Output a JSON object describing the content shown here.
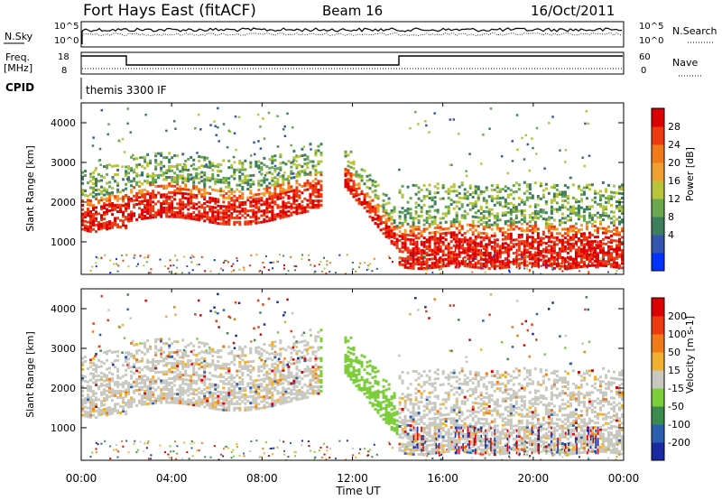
{
  "header": {
    "station": "Fort Hays East (fitACF)",
    "beam": "Beam 16",
    "date": "16/Oct/2011"
  },
  "top_panels": {
    "nsky_label": "N.Sky",
    "nsearch_label": "N.Search",
    "nsky_ticks": [
      "10^5",
      "10^0"
    ],
    "nsearch_ticks": [
      "10^5",
      "10^0"
    ],
    "freq_label": "Freq.",
    "freq_unit": "[MHz]",
    "freq_ticks": [
      "18",
      "8"
    ],
    "nave_label": "Nave",
    "nave_ticks": [
      "60",
      "0"
    ],
    "cpid_label": "CPID",
    "cpid_value": "themis 3300 IF"
  },
  "chart_data": [
    {
      "type": "heatmap",
      "panel": "power",
      "ylabel": "Slant Range [km]",
      "xlabel": "",
      "yticks": [
        "1000",
        "2000",
        "3000",
        "4000"
      ],
      "ylim": [
        180,
        4500
      ],
      "xlim": [
        "00:00",
        "24:00"
      ],
      "colorbar": {
        "label": "Power [dB]",
        "ticks": [
          "28",
          "24",
          "20",
          "16",
          "12",
          "8",
          "4"
        ],
        "colors": [
          "#0033ff",
          "#3355b0",
          "#3d7f5c",
          "#6aa84f",
          "#b8c43a",
          "#f0a030",
          "#f07a18",
          "#ee3a10",
          "#dd0000"
        ]
      },
      "echo_bands": [
        {
          "from_hour": 0.0,
          "to_hour": 2.0,
          "range_km": [
            1500,
            2500
          ],
          "power_db": 26
        },
        {
          "from_hour": 2.0,
          "to_hour": 10.0,
          "range_km": [
            1300,
            2800
          ],
          "power_db": 24
        },
        {
          "from_hour": 10.5,
          "to_hour": 14.0,
          "range_km": [
            900,
            3200
          ],
          "power_db": 22
        },
        {
          "from_hour": 14.0,
          "to_hour": 24.0,
          "range_km": [
            1000,
            2500
          ],
          "power_db": 22
        }
      ]
    },
    {
      "type": "heatmap",
      "panel": "velocity",
      "ylabel": "Slant Range [km]",
      "xlabel": "Time UT",
      "yticks": [
        "1000",
        "2000",
        "3000",
        "4000"
      ],
      "ylim": [
        180,
        4500
      ],
      "xticks": [
        "00:00",
        "04:00",
        "08:00",
        "12:00",
        "16:00",
        "20:00",
        "00:00"
      ],
      "colorbar": {
        "label": "Velocity [m s-1]",
        "ticks": [
          "200",
          "100",
          "50",
          "15",
          "-15",
          "-50",
          "-100",
          "-200"
        ],
        "colors": [
          "#1a2aa0",
          "#2a5fb0",
          "#3b8a4e",
          "#7ccd3a",
          "#c8c8c0",
          "#f0b030",
          "#f07a18",
          "#ee3a10",
          "#dd0000"
        ]
      },
      "dominant_velocity_m_s": 0
    }
  ]
}
